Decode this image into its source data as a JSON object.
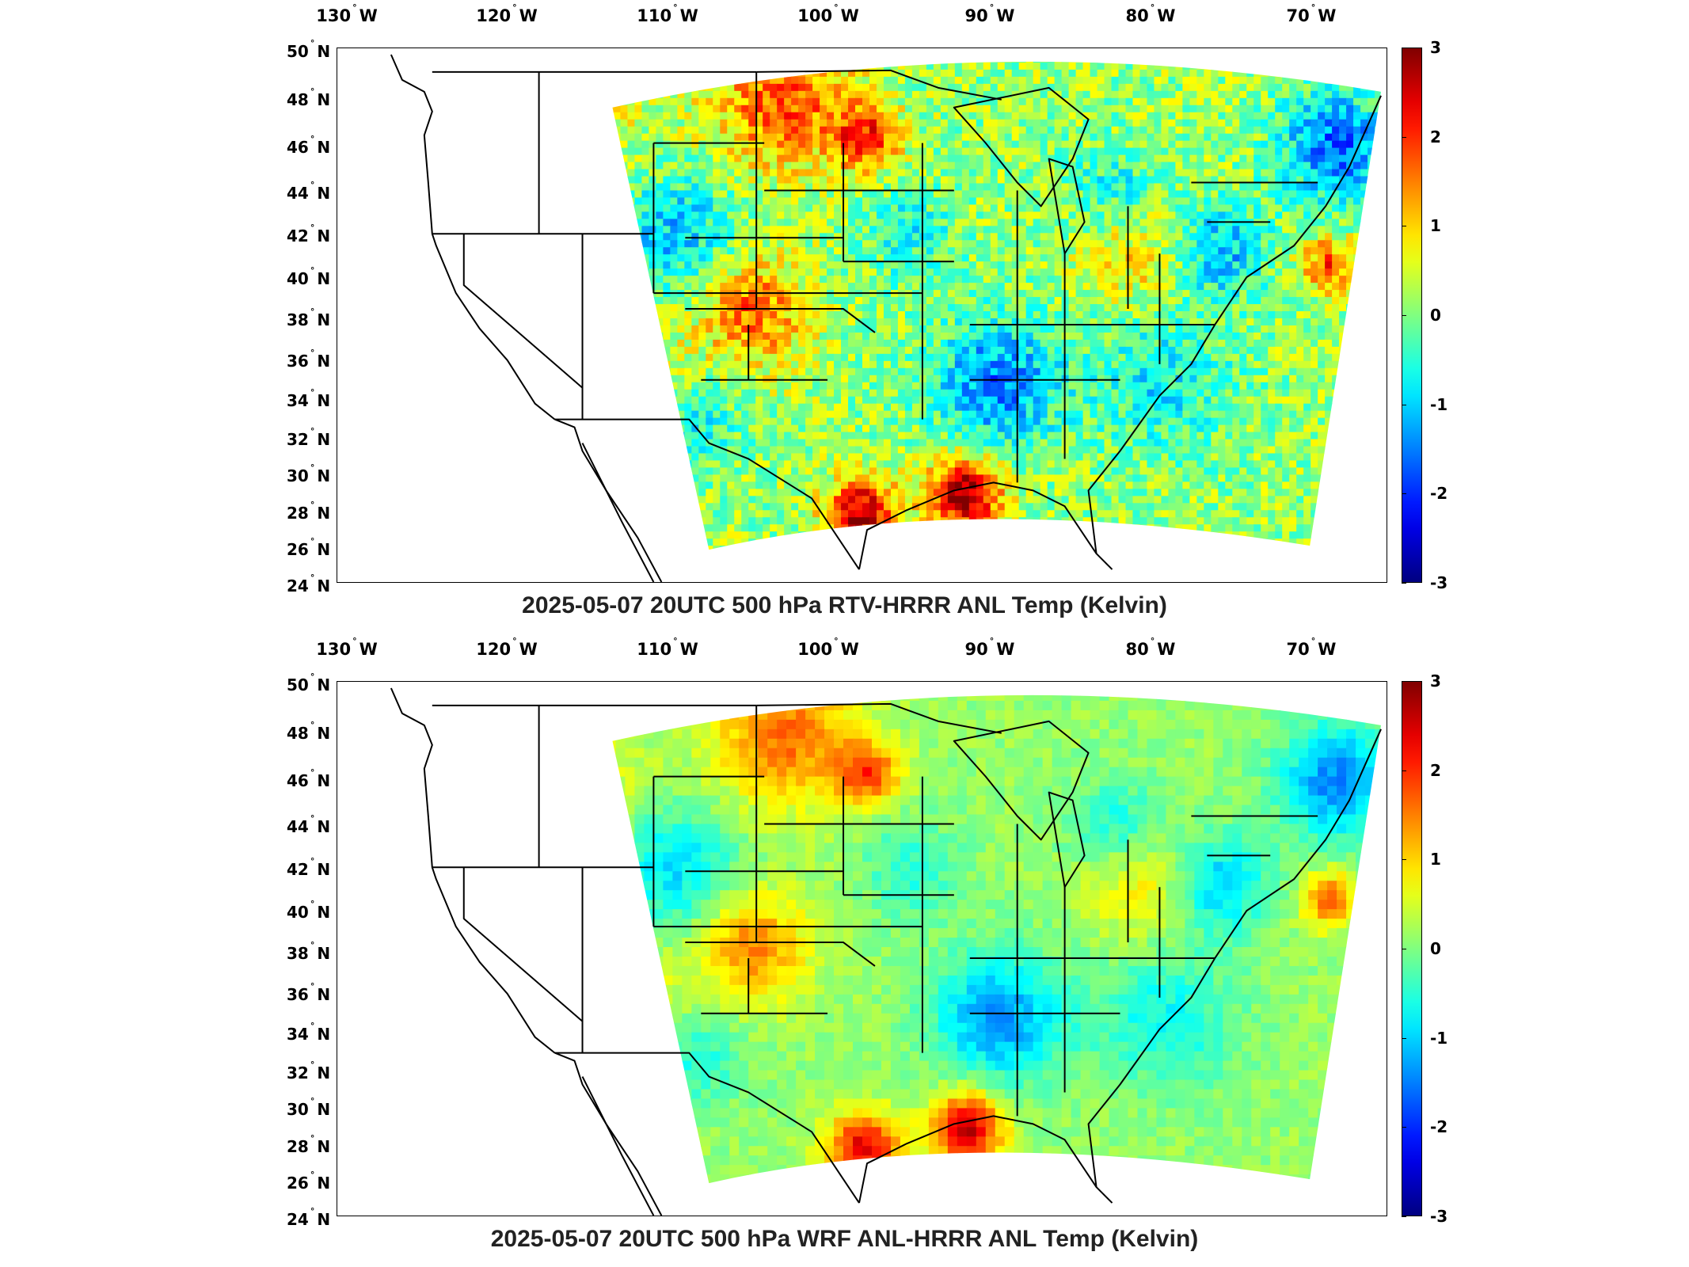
{
  "lon_labels": [
    "130",
    "120",
    "110",
    "100",
    "90",
    "80",
    "70"
  ],
  "lon_hemisphere": "W",
  "lat_labels": [
    "50",
    "48",
    "46",
    "44",
    "42",
    "40",
    "38",
    "36",
    "34",
    "32",
    "30",
    "28",
    "26",
    "24"
  ],
  "lat_hemisphere": "N",
  "colorbar": {
    "ticks": [
      "3",
      "2",
      "1",
      "0",
      "-1",
      "-2",
      "-3"
    ],
    "min": -3,
    "max": 3,
    "colormap": "jet"
  },
  "panels": [
    {
      "id": "top",
      "caption": "2025-05-07 20UTC 500 hPa RTV-HRRR ANL Temp (Kelvin)",
      "pattern": "noisy"
    },
    {
      "id": "bottom",
      "caption": "2025-05-07 20UTC 500 hPa WRF ANL-HRRR ANL Temp (Kelvin)",
      "pattern": "smooth"
    }
  ],
  "colors": {
    "jet_low": "#00008f",
    "jet_mid": "#7fff7f",
    "jet_high": "#800000",
    "boundary": "#000000"
  }
}
